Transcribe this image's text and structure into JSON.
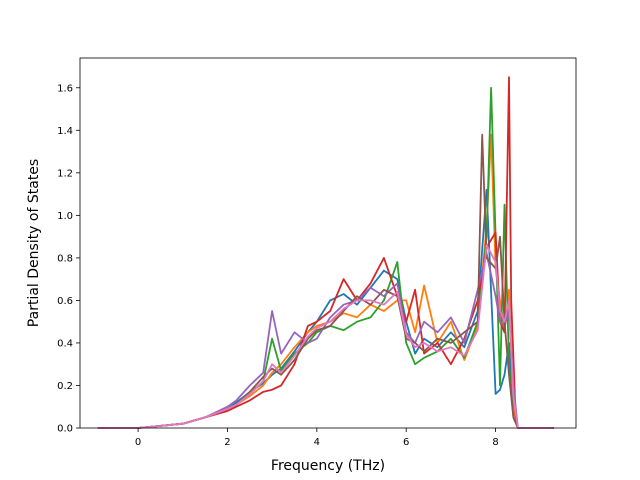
{
  "chart_data": {
    "type": "line",
    "title": "",
    "xlabel": "Frequency (THz)",
    "ylabel": "Partial Density of States",
    "xlim": [
      -1.3,
      9.8
    ],
    "ylim": [
      0.0,
      1.74
    ],
    "xticks": [
      0,
      2,
      4,
      6,
      8
    ],
    "yticks": [
      0.0,
      0.2,
      0.4,
      0.6,
      0.8,
      1.0,
      1.2,
      1.4,
      1.6
    ],
    "xtick_labels": [
      "0",
      "2",
      "4",
      "6",
      "8"
    ],
    "ytick_labels": [
      "0.0",
      "0.2",
      "0.4",
      "0.6",
      "0.8",
      "1.0",
      "1.2",
      "1.4",
      "1.6"
    ],
    "grid": false,
    "legend": "none",
    "series": [
      {
        "color": "#1f77b4",
        "x": [
          -0.9,
          0,
          0.5,
          1,
          1.5,
          2,
          2.2,
          2.5,
          2.8,
          3.0,
          3.2,
          3.5,
          3.8,
          4.0,
          4.3,
          4.6,
          4.9,
          5.2,
          5.5,
          5.8,
          6.0,
          6.2,
          6.4,
          6.7,
          7.0,
          7.3,
          7.6,
          7.8,
          8.0,
          8.1,
          8.2,
          8.3,
          8.4,
          8.5,
          9.3
        ],
        "y": [
          0,
          0,
          0.01,
          0.02,
          0.05,
          0.09,
          0.12,
          0.17,
          0.21,
          0.25,
          0.28,
          0.36,
          0.45,
          0.5,
          0.6,
          0.63,
          0.58,
          0.66,
          0.74,
          0.7,
          0.5,
          0.35,
          0.42,
          0.38,
          0.45,
          0.38,
          0.55,
          1.12,
          0.16,
          0.18,
          0.25,
          0.4,
          0.1,
          0,
          0
        ]
      },
      {
        "color": "#ff7f0e",
        "x": [
          -0.9,
          0,
          0.5,
          1,
          1.5,
          2,
          2.2,
          2.5,
          2.8,
          3.0,
          3.2,
          3.5,
          3.8,
          4.0,
          4.3,
          4.6,
          4.9,
          5.2,
          5.5,
          5.8,
          6.0,
          6.2,
          6.4,
          6.7,
          7.0,
          7.3,
          7.6,
          7.8,
          7.9,
          8.0,
          8.1,
          8.2,
          8.3,
          8.4,
          8.5,
          9.3
        ],
        "y": [
          0,
          0,
          0.01,
          0.02,
          0.05,
          0.09,
          0.11,
          0.15,
          0.2,
          0.26,
          0.3,
          0.38,
          0.45,
          0.48,
          0.5,
          0.54,
          0.52,
          0.58,
          0.55,
          0.6,
          0.6,
          0.45,
          0.67,
          0.4,
          0.5,
          0.32,
          0.48,
          0.95,
          1.38,
          0.75,
          0.6,
          0.45,
          0.65,
          0.1,
          0,
          0
        ]
      },
      {
        "color": "#2ca02c",
        "x": [
          -0.9,
          0,
          0.5,
          1,
          1.5,
          2,
          2.2,
          2.5,
          2.8,
          3.0,
          3.2,
          3.5,
          3.8,
          4.0,
          4.3,
          4.6,
          4.9,
          5.2,
          5.5,
          5.8,
          6.0,
          6.2,
          6.4,
          6.7,
          7.0,
          7.3,
          7.6,
          7.8,
          7.9,
          8.0,
          8.1,
          8.2,
          8.3,
          8.4,
          8.5,
          9.3
        ],
        "y": [
          0,
          0,
          0.01,
          0.02,
          0.05,
          0.09,
          0.11,
          0.16,
          0.22,
          0.42,
          0.27,
          0.35,
          0.4,
          0.45,
          0.48,
          0.46,
          0.5,
          0.52,
          0.6,
          0.78,
          0.4,
          0.3,
          0.33,
          0.36,
          0.42,
          0.33,
          0.5,
          0.9,
          1.6,
          0.9,
          0.2,
          1.05,
          0.3,
          0.05,
          0,
          0
        ]
      },
      {
        "color": "#d62728",
        "x": [
          -0.9,
          0,
          0.5,
          1,
          1.5,
          2,
          2.2,
          2.5,
          2.8,
          3.0,
          3.2,
          3.5,
          3.8,
          4.0,
          4.3,
          4.6,
          4.9,
          5.2,
          5.5,
          5.8,
          6.0,
          6.2,
          6.4,
          6.7,
          7.0,
          7.3,
          7.6,
          7.8,
          8.0,
          8.1,
          8.2,
          8.3,
          8.35,
          8.45,
          8.5,
          9.3
        ],
        "y": [
          0,
          0,
          0.01,
          0.02,
          0.05,
          0.08,
          0.1,
          0.13,
          0.17,
          0.18,
          0.2,
          0.3,
          0.48,
          0.5,
          0.55,
          0.7,
          0.6,
          0.68,
          0.8,
          0.62,
          0.5,
          0.65,
          0.35,
          0.4,
          0.3,
          0.42,
          0.6,
          0.85,
          0.92,
          0.5,
          0.45,
          1.65,
          0.6,
          0.05,
          0,
          0
        ]
      },
      {
        "color": "#9467bd",
        "x": [
          -0.9,
          0,
          0.5,
          1,
          1.5,
          2,
          2.2,
          2.5,
          2.8,
          3.0,
          3.2,
          3.5,
          3.8,
          4.0,
          4.3,
          4.6,
          4.9,
          5.2,
          5.5,
          5.8,
          6.0,
          6.2,
          6.4,
          6.7,
          7.0,
          7.3,
          7.6,
          7.8,
          8.0,
          8.1,
          8.2,
          8.3,
          8.4,
          8.5,
          9.3
        ],
        "y": [
          0,
          0,
          0.01,
          0.02,
          0.05,
          0.1,
          0.13,
          0.2,
          0.26,
          0.55,
          0.35,
          0.45,
          0.4,
          0.42,
          0.52,
          0.58,
          0.6,
          0.66,
          0.62,
          0.68,
          0.45,
          0.4,
          0.5,
          0.45,
          0.52,
          0.4,
          0.65,
          0.82,
          0.62,
          0.5,
          0.48,
          0.55,
          0.2,
          0,
          0
        ]
      },
      {
        "color": "#8c564b",
        "x": [
          -0.9,
          0,
          0.5,
          1,
          1.5,
          2,
          2.2,
          2.5,
          2.8,
          3.0,
          3.2,
          3.5,
          3.8,
          4.0,
          4.3,
          4.6,
          4.9,
          5.2,
          5.5,
          5.8,
          6.0,
          6.2,
          6.4,
          6.7,
          7.0,
          7.3,
          7.6,
          7.7,
          7.8,
          8.0,
          8.1,
          8.2,
          8.3,
          8.4,
          8.5,
          9.3
        ],
        "y": [
          0,
          0,
          0.01,
          0.02,
          0.05,
          0.09,
          0.11,
          0.17,
          0.24,
          0.28,
          0.25,
          0.32,
          0.42,
          0.46,
          0.48,
          0.55,
          0.62,
          0.58,
          0.65,
          0.62,
          0.42,
          0.4,
          0.36,
          0.42,
          0.4,
          0.45,
          0.5,
          1.38,
          0.8,
          0.75,
          0.9,
          0.5,
          0.25,
          0.05,
          0,
          0
        ]
      },
      {
        "color": "#e377c2",
        "x": [
          -0.9,
          0,
          0.5,
          1,
          1.5,
          2,
          2.2,
          2.5,
          2.8,
          3.0,
          3.2,
          3.5,
          3.8,
          4.0,
          4.3,
          4.6,
          4.9,
          5.2,
          5.5,
          5.8,
          6.0,
          6.2,
          6.4,
          6.7,
          7.0,
          7.3,
          7.6,
          7.8,
          8.0,
          8.1,
          8.2,
          8.3,
          8.4,
          8.5,
          9.3
        ],
        "y": [
          0,
          0,
          0.01,
          0.02,
          0.05,
          0.09,
          0.11,
          0.16,
          0.22,
          0.3,
          0.26,
          0.34,
          0.43,
          0.47,
          0.5,
          0.56,
          0.6,
          0.6,
          0.58,
          0.64,
          0.44,
          0.38,
          0.4,
          0.36,
          0.38,
          0.34,
          0.46,
          0.86,
          0.78,
          0.55,
          0.5,
          0.6,
          0.15,
          0,
          0
        ]
      }
    ]
  }
}
